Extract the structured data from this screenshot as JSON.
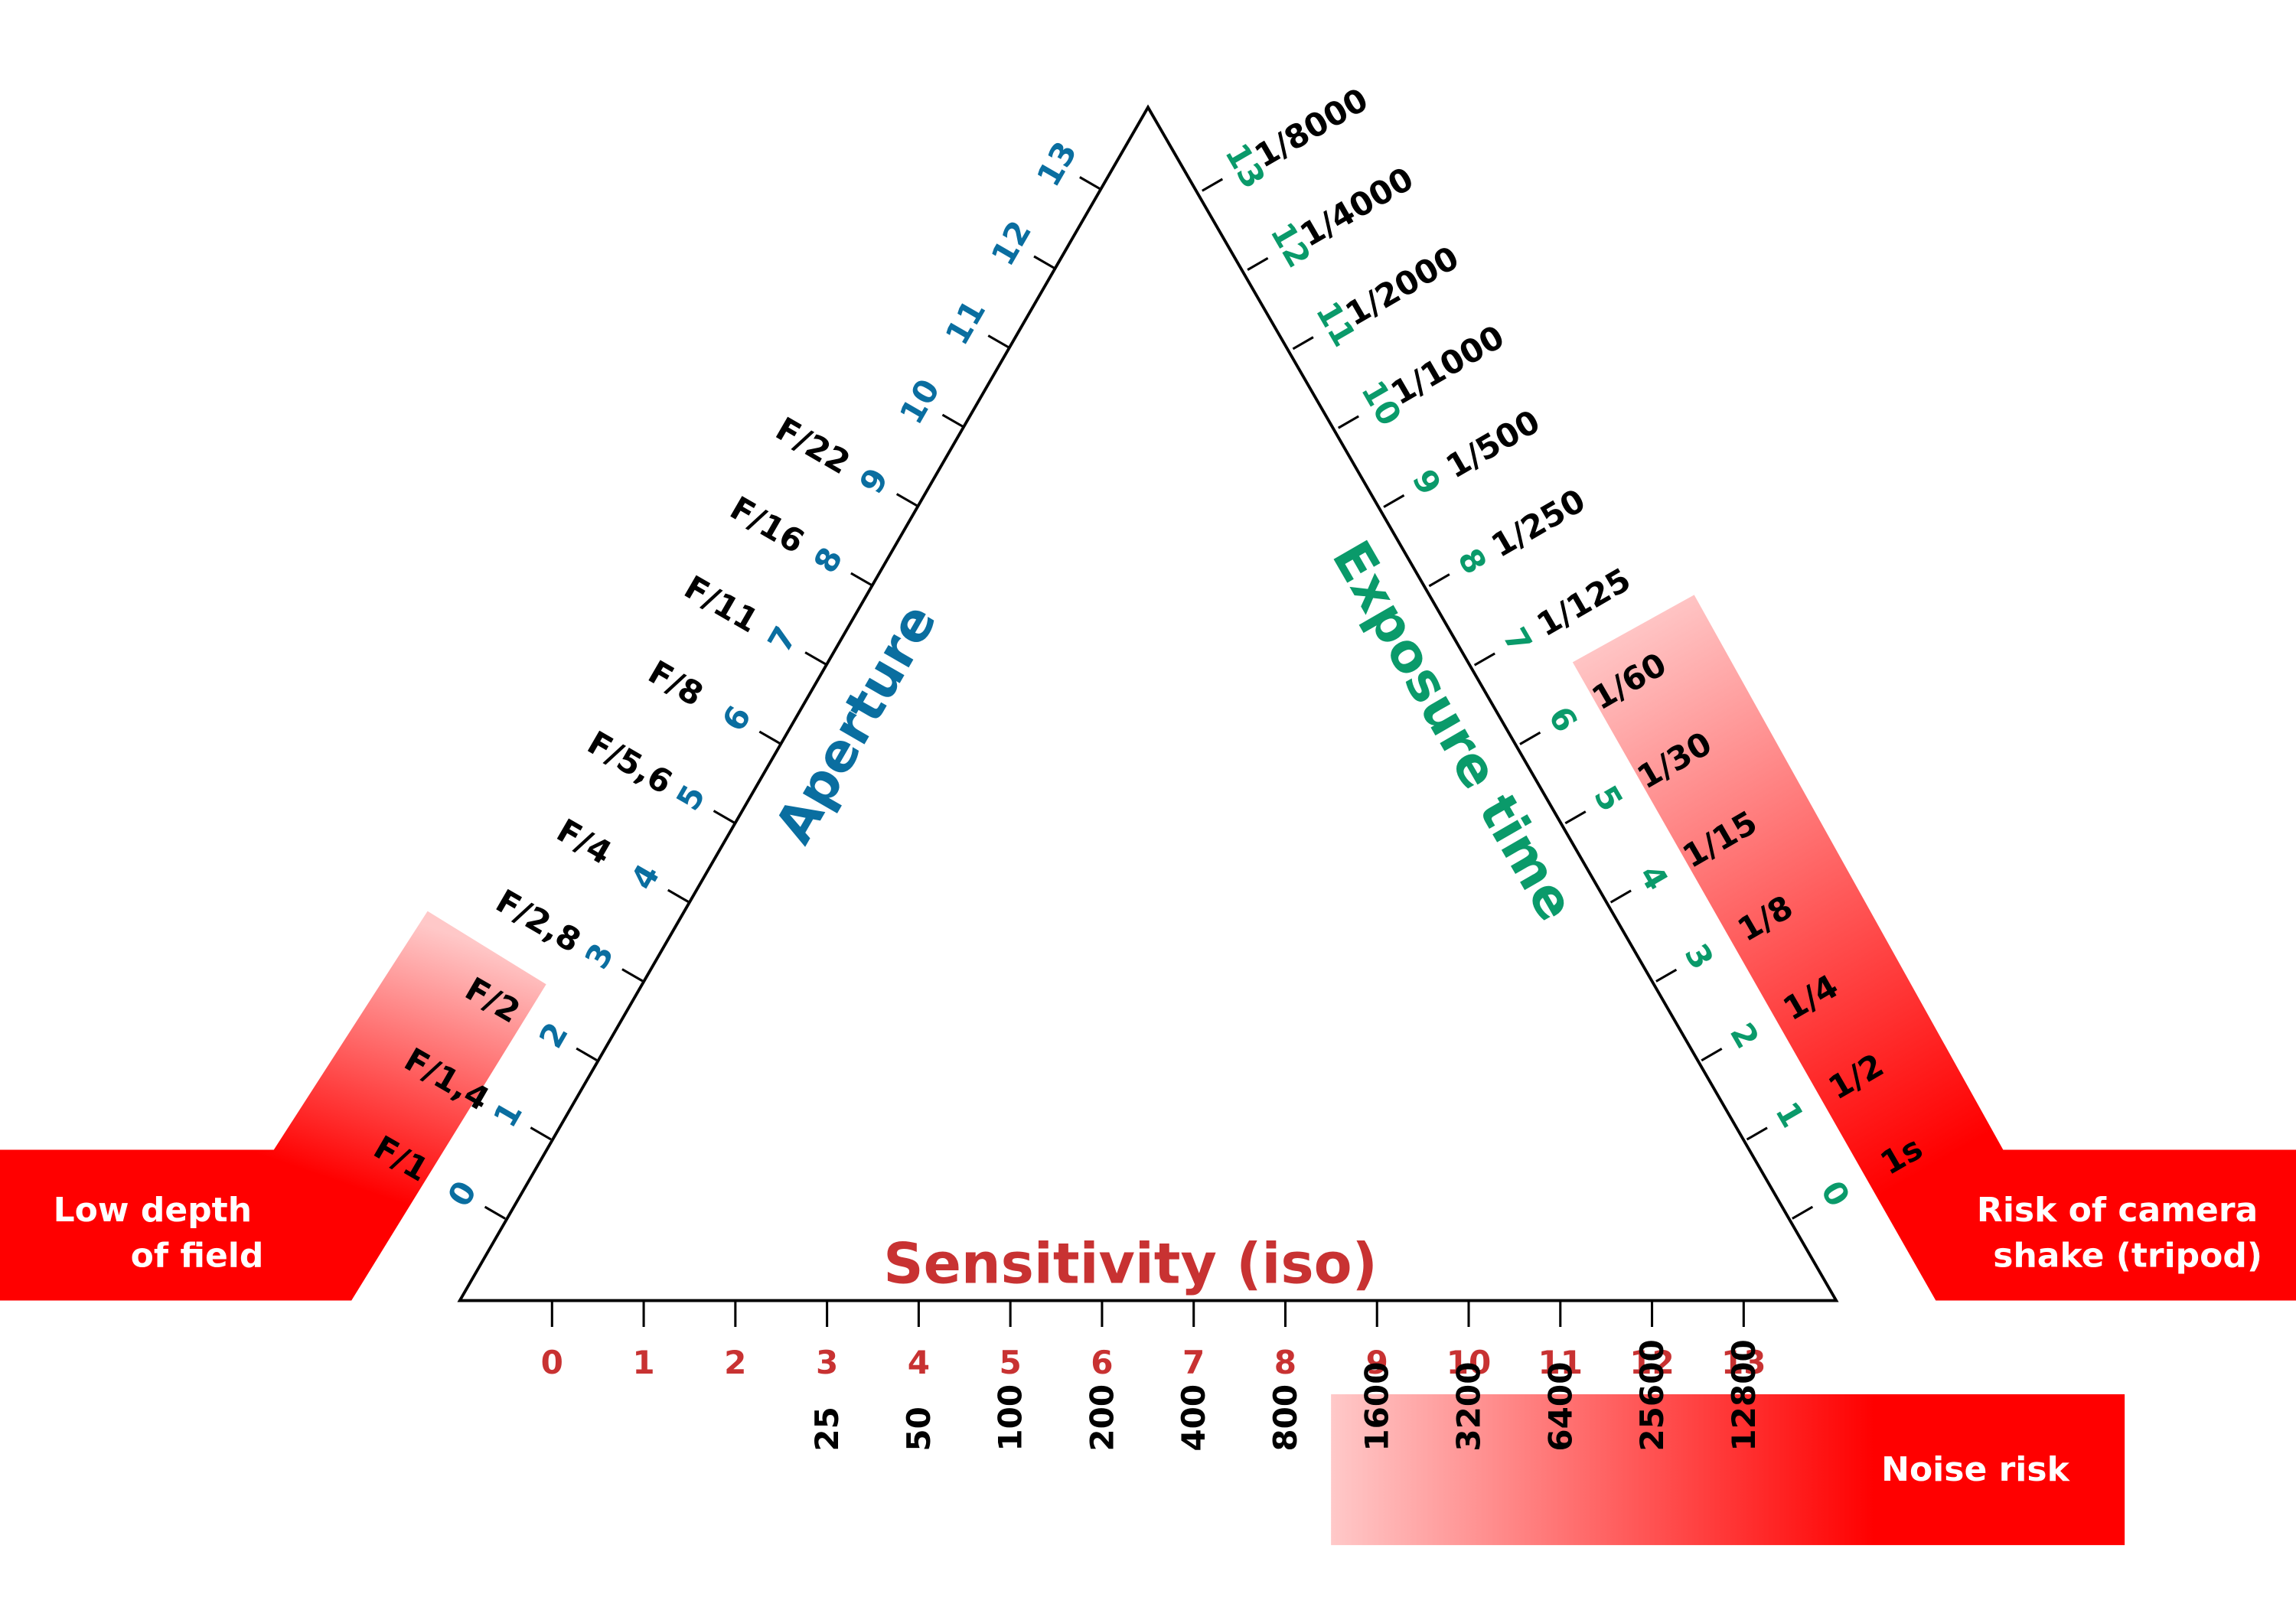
{
  "colors": {
    "aperture": "#0a6ea0",
    "exposure": "#0a9a6a",
    "iso": "#c83232",
    "risk_red": "#ff0000",
    "risk_pink": "#ffc8c8",
    "text": "#000000",
    "outline": "#000000"
  },
  "aperture": {
    "title": "Aperture",
    "ticks": [
      "0",
      "1",
      "2",
      "3",
      "4",
      "5",
      "6",
      "7",
      "8",
      "9",
      "10",
      "11",
      "12",
      "13"
    ],
    "values": [
      "F/1",
      "F/1,4",
      "F/2",
      "F/2,8",
      "F/4",
      "F/5,6",
      "F/8",
      "F/11",
      "F/16",
      "F/22"
    ],
    "risk_label": [
      "Low depth",
      "of field"
    ]
  },
  "exposure": {
    "title": "Exposure time",
    "ticks": [
      "0",
      "1",
      "2",
      "3",
      "4",
      "5",
      "6",
      "7",
      "8",
      "9",
      "10",
      "11",
      "12",
      "13"
    ],
    "values": [
      "1s",
      "1/2",
      "1/4",
      "1/8",
      "1/15",
      "1/30",
      "1/60",
      "1/125",
      "1/250",
      "1/500",
      "1/1000",
      "1/2000",
      "1/4000",
      "1/8000"
    ],
    "risk_label": [
      "Risk of camera",
      "shake (tripod)"
    ]
  },
  "iso": {
    "title": "Sensitivity (iso)",
    "ticks": [
      "0",
      "1",
      "2",
      "3",
      "4",
      "5",
      "6",
      "7",
      "8",
      "9",
      "10",
      "11",
      "12",
      "13"
    ],
    "values": [
      "25",
      "50",
      "100",
      "200",
      "400",
      "800",
      "1600",
      "3200",
      "6400",
      "25600",
      "12800"
    ],
    "risk_label": "Noise risk"
  }
}
